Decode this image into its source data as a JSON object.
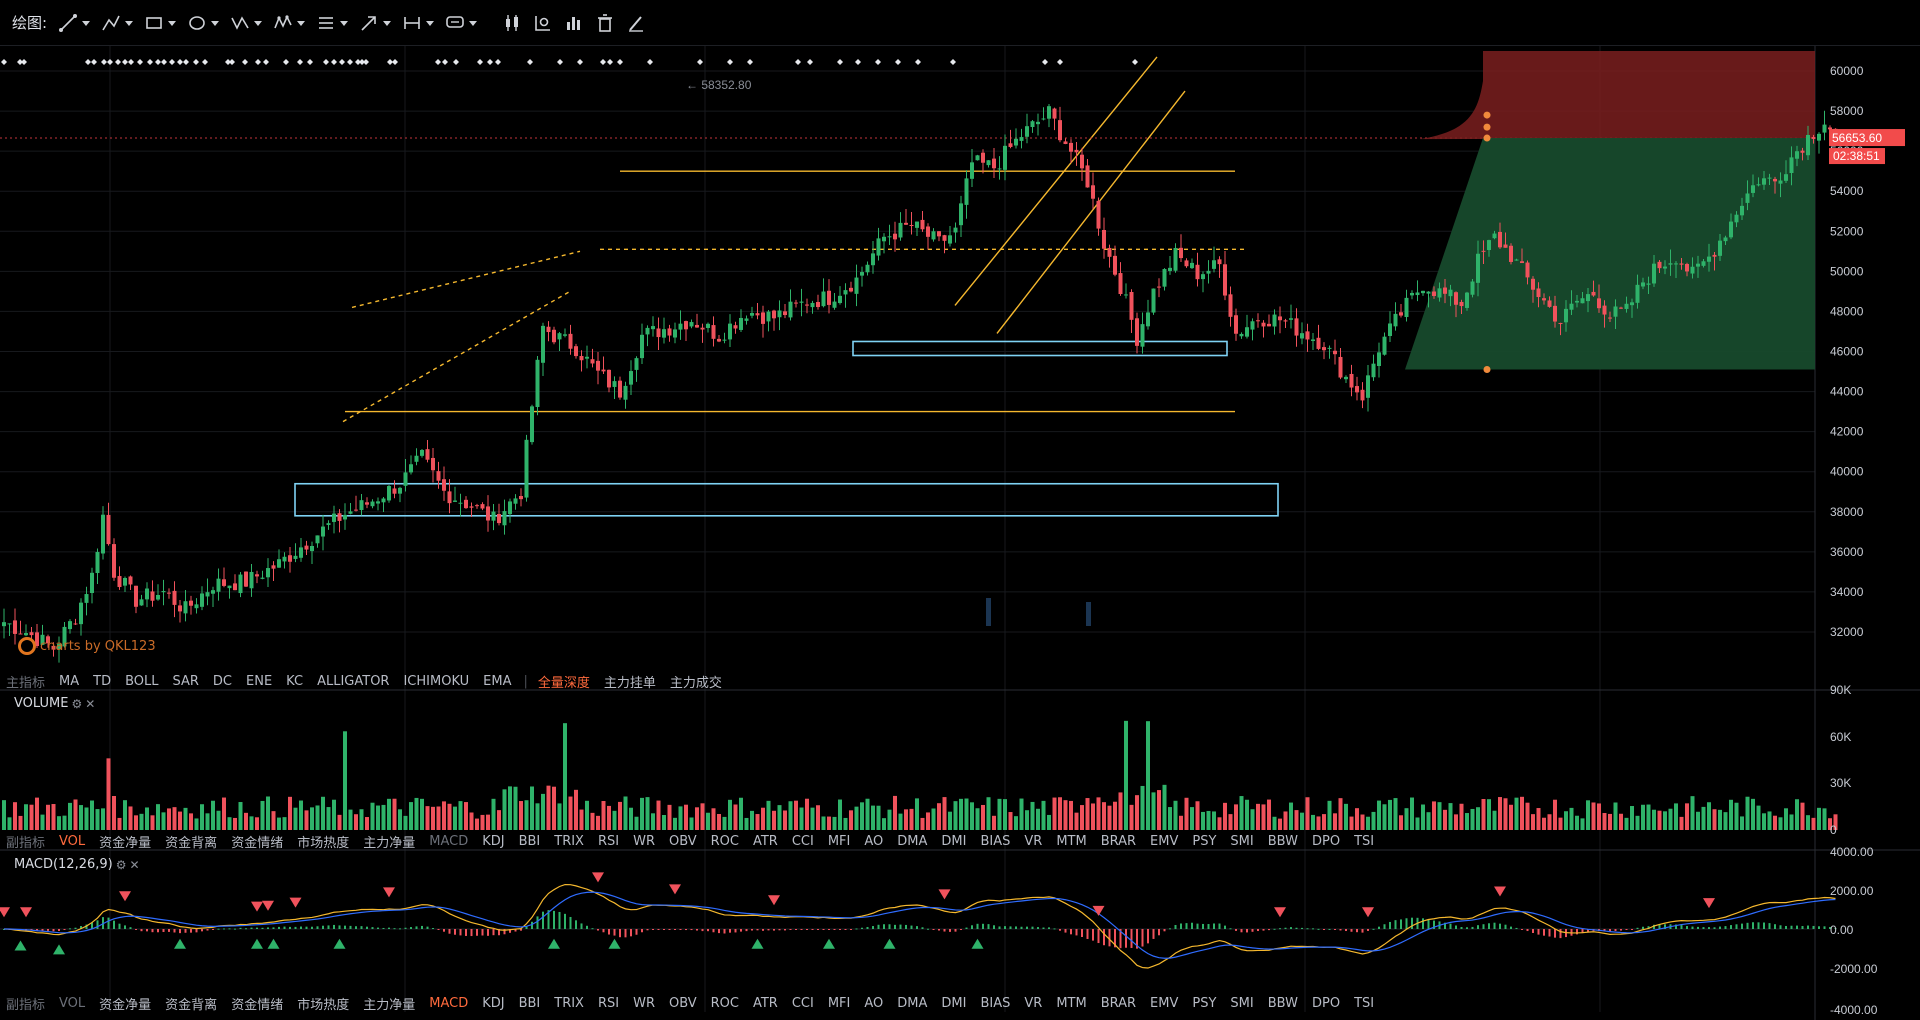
{
  "toolbar": {
    "label": "绘图:",
    "tools": [
      {
        "icon": "trend-line-icon",
        "has_menu": true
      },
      {
        "icon": "multi-point-line-icon",
        "has_menu": true
      },
      {
        "icon": "rectangle-icon",
        "has_menu": true
      },
      {
        "icon": "ellipse-icon",
        "has_menu": true
      },
      {
        "icon": "zigzag-pattern-icon",
        "has_menu": true
      },
      {
        "icon": "harmonic-pattern-icon",
        "has_menu": true
      },
      {
        "icon": "fibonacci-icon",
        "has_menu": true
      },
      {
        "icon": "arrow-icon",
        "has_menu": true
      },
      {
        "icon": "measure-range-icon",
        "has_menu": true
      },
      {
        "icon": "text-annotation-icon",
        "has_menu": true
      },
      {
        "icon": "candle-type-icon",
        "has_menu": false
      },
      {
        "icon": "chart-settings-icon",
        "has_menu": false
      },
      {
        "icon": "bar-stats-icon",
        "has_menu": false
      },
      {
        "icon": "trash-icon",
        "has_menu": false
      },
      {
        "icon": "pen-lock-icon",
        "has_menu": false
      }
    ]
  },
  "watermark": "charts by QKL123",
  "price_axis": {
    "ticks": [
      "60000",
      "58000",
      "56000",
      "54000",
      "52000",
      "50000",
      "48000",
      "46000",
      "44000",
      "42000",
      "40000",
      "38000",
      "36000",
      "34000",
      "32000"
    ],
    "current_price": "56653.60",
    "countdown": "02:38:51",
    "high_label": "58352.80"
  },
  "volume_axis": {
    "ticks": [
      "90K",
      "60K",
      "30K",
      "0"
    ]
  },
  "macd_axis": {
    "ticks": [
      "4000.00",
      "2000.00",
      "0.00",
      "-2000.00",
      "-4000.00"
    ]
  },
  "main_indicators": {
    "title": "主指标",
    "items": [
      "MA",
      "TD",
      "BOLL",
      "SAR",
      "DC",
      "ENE",
      "KC",
      "ALLIGATOR",
      "ICHIMOKU",
      "EMA"
    ],
    "extras": [
      "全量深度",
      "主力挂单",
      "主力成交"
    ],
    "active_extra": "全量深度"
  },
  "sub_indicators_1": {
    "title": "副指标",
    "items": [
      "VOL",
      "资金净量",
      "资金背离",
      "资金情绪",
      "市场热度",
      "主力净量",
      "MACD",
      "KDJ",
      "BBI",
      "TRIX",
      "RSI",
      "WR",
      "OBV",
      "ROC",
      "ATR",
      "CCI",
      "MFI",
      "AO",
      "DMA",
      "DMI",
      "BIAS",
      "VR",
      "MTM",
      "BRAR",
      "EMV",
      "PSY",
      "SMI",
      "BBW",
      "DPO",
      "TSI"
    ],
    "active": "VOL",
    "dim": [
      "MACD"
    ]
  },
  "sub_indicators_2": {
    "title": "副指标",
    "items": [
      "VOL",
      "资金净量",
      "资金背离",
      "资金情绪",
      "市场热度",
      "主力净量",
      "MACD",
      "KDJ",
      "BBI",
      "TRIX",
      "RSI",
      "WR",
      "OBV",
      "ROC",
      "ATR",
      "CCI",
      "MFI",
      "AO",
      "DMA",
      "DMI",
      "BIAS",
      "VR",
      "MTM",
      "BRAR",
      "EMV",
      "PSY",
      "SMI",
      "BBW",
      "DPO",
      "TSI"
    ],
    "active": "MACD",
    "dim": [
      "VOL"
    ]
  },
  "volume_pane": {
    "title": "VOLUME"
  },
  "macd_pane": {
    "title": "MACD(12,26,9)"
  },
  "colors": {
    "up": "#2fb36a",
    "down": "#f0525c",
    "drawing_line": "#f5b82e",
    "zone_box": "#7fd3f5",
    "price_tag": "#f24b4b",
    "macd_fast": "#f5b82e",
    "macd_slow": "#2f6cff"
  },
  "chart_data": {
    "type": "candlestick",
    "anchors": [
      [
        0,
        32500
      ],
      [
        4,
        32000
      ],
      [
        9,
        31200
      ],
      [
        13,
        32800
      ],
      [
        16,
        34800
      ],
      [
        18,
        37800
      ],
      [
        20,
        35000
      ],
      [
        24,
        33600
      ],
      [
        29,
        34000
      ],
      [
        33,
        33100
      ],
      [
        38,
        34400
      ],
      [
        44,
        34500
      ],
      [
        50,
        35400
      ],
      [
        56,
        36700
      ],
      [
        62,
        37900
      ],
      [
        66,
        38400
      ],
      [
        72,
        39400
      ],
      [
        76,
        40700
      ],
      [
        80,
        39000
      ],
      [
        85,
        38300
      ],
      [
        89,
        37600
      ],
      [
        94,
        39000
      ],
      [
        96,
        43300
      ],
      [
        98,
        47200
      ],
      [
        100,
        46800
      ],
      [
        104,
        46200
      ],
      [
        108,
        44900
      ],
      [
        112,
        44000
      ],
      [
        116,
        46800
      ],
      [
        121,
        47200
      ],
      [
        125,
        47600
      ],
      [
        130,
        46800
      ],
      [
        135,
        48000
      ],
      [
        140,
        47700
      ],
      [
        146,
        48500
      ],
      [
        150,
        48700
      ],
      [
        155,
        49600
      ],
      [
        160,
        51700
      ],
      [
        165,
        52300
      ],
      [
        170,
        51400
      ],
      [
        173,
        52000
      ],
      [
        176,
        55400
      ],
      [
        180,
        55200
      ],
      [
        185,
        56800
      ],
      [
        190,
        57900
      ],
      [
        194,
        56000
      ],
      [
        197,
        54500
      ],
      [
        200,
        51400
      ],
      [
        203,
        49300
      ],
      [
        206,
        46700
      ],
      [
        209,
        49000
      ],
      [
        213,
        50800
      ],
      [
        217,
        49900
      ],
      [
        221,
        50300
      ],
      [
        224,
        46900
      ],
      [
        228,
        47700
      ],
      [
        232,
        47600
      ],
      [
        236,
        47000
      ],
      [
        240,
        46400
      ],
      [
        244,
        44700
      ],
      [
        247,
        43800
      ],
      [
        250,
        46200
      ],
      [
        254,
        47900
      ],
      [
        258,
        49400
      ],
      [
        262,
        48800
      ],
      [
        265,
        48400
      ],
      [
        268,
        50500
      ],
      [
        271,
        51700
      ],
      [
        274,
        50800
      ],
      [
        277,
        49600
      ],
      [
        280,
        48500
      ],
      [
        283,
        47500
      ],
      [
        286,
        48500
      ],
      [
        289,
        48900
      ],
      [
        292,
        47800
      ],
      [
        295,
        48000
      ],
      [
        298,
        49500
      ],
      [
        301,
        50300
      ],
      [
        304,
        50800
      ],
      [
        307,
        49800
      ],
      [
        310,
        50700
      ],
      [
        313,
        52000
      ],
      [
        316,
        53500
      ],
      [
        319,
        54600
      ],
      [
        322,
        54500
      ],
      [
        325,
        55700
      ],
      [
        328,
        56700
      ],
      [
        331,
        57500
      ],
      [
        333,
        56800
      ]
    ],
    "volume_ylim": [
      0,
      90000
    ],
    "macd_ylim": [
      -4000,
      4000
    ],
    "price_ylim": [
      30000,
      61000
    ]
  }
}
